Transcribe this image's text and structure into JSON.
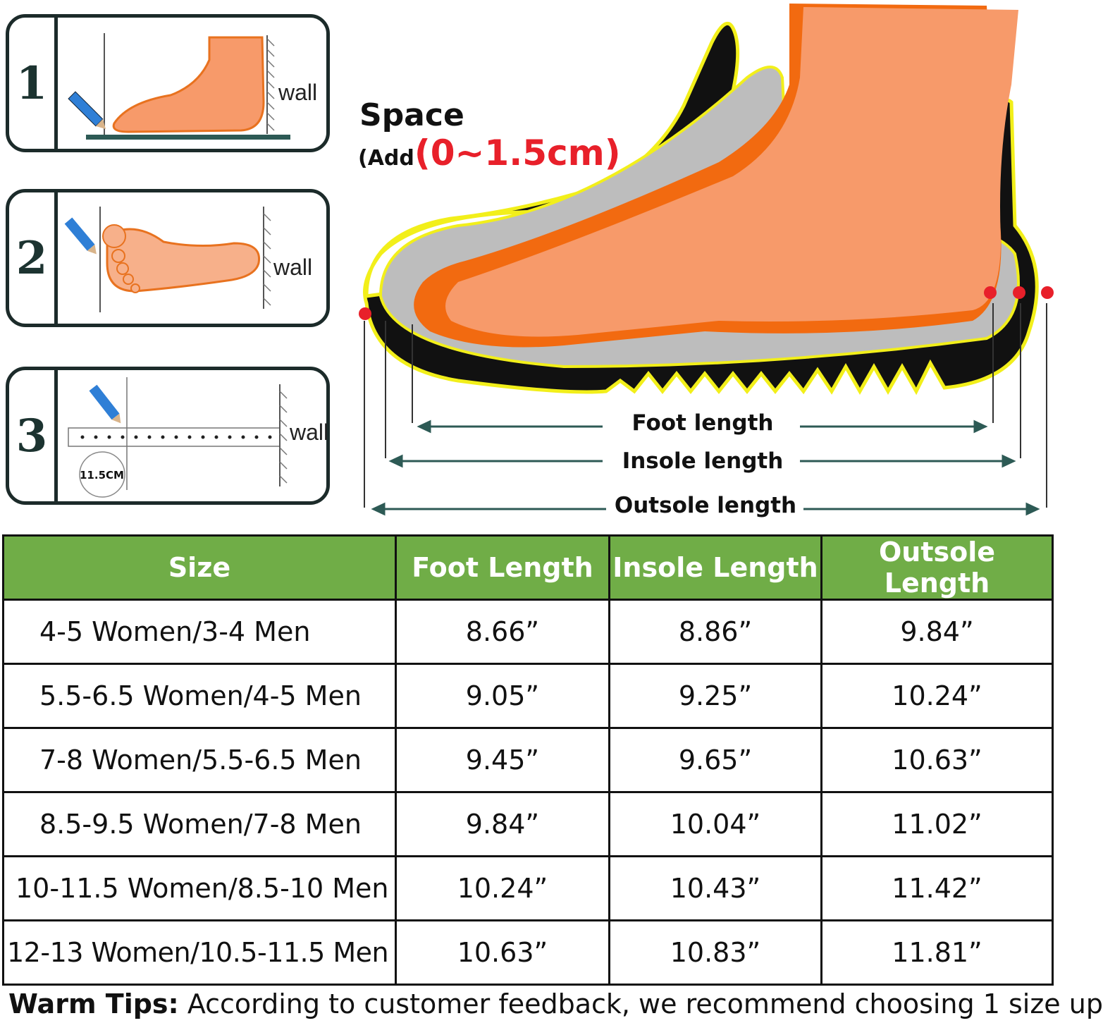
{
  "steps": [
    {
      "number": "1",
      "wall_label": "wall"
    },
    {
      "number": "2",
      "wall_label": "wall"
    },
    {
      "number": "3",
      "wall_label": "wall",
      "measure_label": "11.5CM"
    }
  ],
  "diagram": {
    "space_label": "Space",
    "add_prefix": "(Add",
    "add_value": "(0~1.5cm)",
    "foot_length_label": "Foot length",
    "insole_length_label": "Insole length",
    "outsole_length_label": "Outsole length",
    "colors": {
      "foot": "#f79a6a",
      "insole": "#bdbdbd",
      "outsole": "#111111",
      "outline": "#f2ef1a",
      "marker": "#e8202a",
      "arrow": "#2d5a55"
    }
  },
  "table": {
    "header_color": "#70ad47",
    "headers": [
      "Size",
      "Foot Length",
      "Insole Length",
      "Outsole Length"
    ],
    "rows": [
      [
        "4-5 Women/3-4 Men",
        "8.66”",
        "8.86”",
        "9.84”"
      ],
      [
        "5.5-6.5 Women/4-5 Men",
        "9.05”",
        "9.25”",
        "10.24”"
      ],
      [
        "7-8 Women/5.5-6.5 Men",
        "9.45”",
        "9.65”",
        "10.63”"
      ],
      [
        "8.5-9.5 Women/7-8 Men",
        "9.84”",
        "10.04”",
        "11.02”"
      ],
      [
        "10-11.5 Women/8.5-10 Men",
        "10.24”",
        "10.43”",
        "11.42”"
      ],
      [
        "12-13 Women/10.5-11.5 Men",
        "10.63”",
        "10.83”",
        "11.81”"
      ]
    ]
  },
  "tips": {
    "label": "Warm Tips:",
    "text": " According to customer feedback, we recommend choosing 1 size up"
  }
}
